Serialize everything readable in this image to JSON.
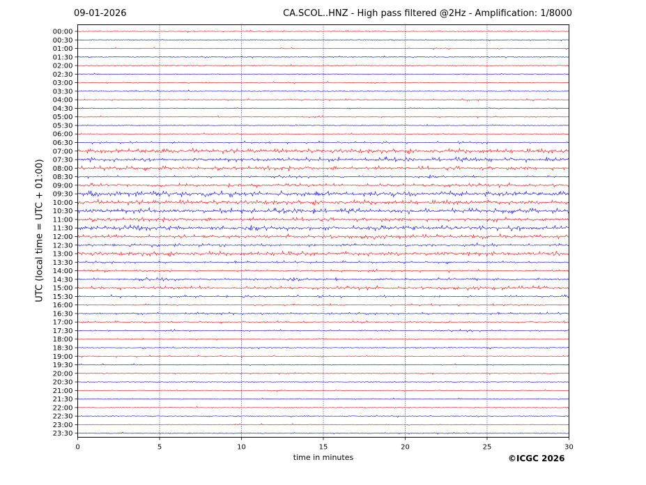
{
  "header": {
    "date": "09-01-2026",
    "title": "CA.SCOL..HNZ - High pass filtered @2Hz - Amplification: 1/8000"
  },
  "footer": {
    "copyright": "©ICGC 2026"
  },
  "chart_data": {
    "type": "line",
    "title": "CA.SCOL..HNZ - High pass filtered @2Hz - Amplification: 1/8000",
    "xlabel": "time in minutes",
    "ylabel": "UTC (local time = UTC + 01:00)",
    "xlim": [
      0,
      30
    ],
    "xticks": [
      0,
      5,
      10,
      15,
      20,
      25,
      30
    ],
    "vertical_gridlines": [
      5,
      10,
      15,
      20,
      25
    ],
    "row_labels": [
      "00:00",
      "00:30",
      "01:00",
      "01:30",
      "02:00",
      "02:30",
      "03:00",
      "03:30",
      "04:00",
      "04:30",
      "05:00",
      "05:30",
      "06:00",
      "06:30",
      "07:00",
      "07:30",
      "08:00",
      "08:30",
      "09:00",
      "09:30",
      "10:00",
      "10:30",
      "11:00",
      "11:30",
      "12:00",
      "12:30",
      "13:00",
      "13:30",
      "14:00",
      "14:30",
      "15:00",
      "15:30",
      "16:00",
      "16:30",
      "17:00",
      "17:30",
      "18:00",
      "18:30",
      "19:00",
      "19:30",
      "20:00",
      "20:30",
      "21:00",
      "21:30",
      "22:00",
      "22:30",
      "23:00",
      "23:30"
    ],
    "trace_colors": [
      "#ff0000",
      "#0000ff"
    ],
    "row_activity": [
      0.05,
      0.05,
      0.05,
      0.08,
      0.05,
      0.05,
      0.06,
      0.05,
      0.1,
      0.05,
      0.1,
      0.05,
      0.08,
      0.2,
      0.9,
      0.8,
      0.7,
      0.35,
      0.6,
      1.0,
      0.9,
      0.95,
      0.7,
      0.9,
      0.7,
      0.5,
      0.85,
      0.25,
      0.35,
      0.45,
      0.55,
      0.3,
      0.2,
      0.25,
      0.2,
      0.2,
      0.1,
      0.1,
      0.08,
      0.05,
      0.05,
      0.05,
      0.05,
      0.05,
      0.05,
      0.05,
      0.05,
      0.05
    ]
  }
}
